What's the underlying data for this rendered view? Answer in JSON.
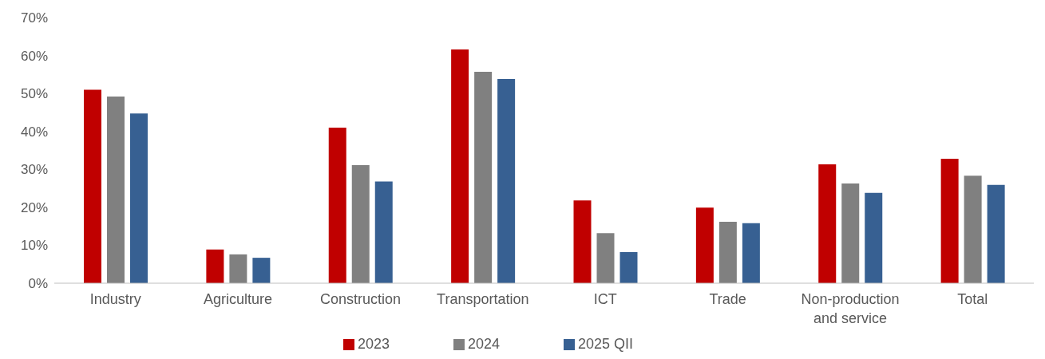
{
  "chart_data": {
    "type": "bar",
    "categories": [
      "Industry",
      "Agriculture",
      "Construction",
      "Transportation",
      "ICT",
      "Trade",
      "Non-production and service",
      "Total"
    ],
    "series": [
      {
        "name": "2023",
        "color": "#c00000",
        "values": [
          51.0,
          8.9,
          41.0,
          61.6,
          21.8,
          19.9,
          31.3,
          32.8
        ]
      },
      {
        "name": "2024",
        "color": "#808080",
        "values": [
          49.2,
          7.6,
          31.1,
          55.7,
          13.2,
          16.2,
          26.3,
          28.3
        ]
      },
      {
        "name": "2025 QII",
        "color": "#376092",
        "values": [
          44.7,
          6.7,
          26.8,
          53.8,
          8.2,
          15.8,
          23.8,
          25.9
        ]
      }
    ],
    "ylim": [
      0,
      70
    ],
    "yticks": [
      {
        "value": 0,
        "label": "0%"
      },
      {
        "value": 10,
        "label": "10%"
      },
      {
        "value": 20,
        "label": "20%"
      },
      {
        "value": 30,
        "label": "30%"
      },
      {
        "value": 40,
        "label": "40%"
      },
      {
        "value": 50,
        "label": "50%"
      },
      {
        "value": 60,
        "label": "60%"
      },
      {
        "value": 70,
        "label": "70%"
      }
    ],
    "grid": false,
    "legend": "bottom"
  }
}
